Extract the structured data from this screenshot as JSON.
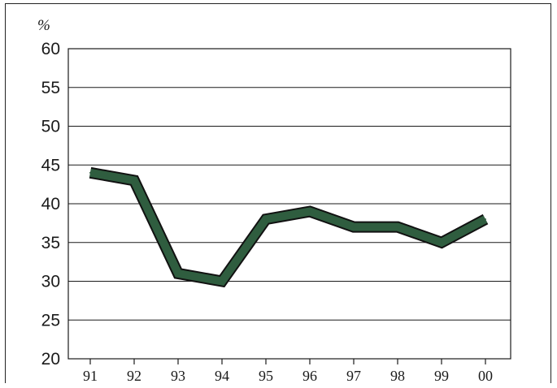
{
  "chart_data": {
    "type": "line",
    "title": "",
    "xlabel": "",
    "ylabel": "%",
    "ylim": [
      20,
      60
    ],
    "yticks": [
      "20",
      "25",
      "30",
      "35",
      "40",
      "45",
      "50",
      "55",
      "60"
    ],
    "categories": [
      "91",
      "92",
      "93",
      "94",
      "95",
      "96",
      "97",
      "98",
      "99",
      "00"
    ],
    "series": [
      {
        "values": [
          44,
          43,
          31,
          30,
          38,
          39,
          37,
          37,
          35,
          38
        ]
      }
    ],
    "grid": true,
    "legend": "none",
    "line_color": "#2f5d3f",
    "line_outline_color": "#111111"
  }
}
